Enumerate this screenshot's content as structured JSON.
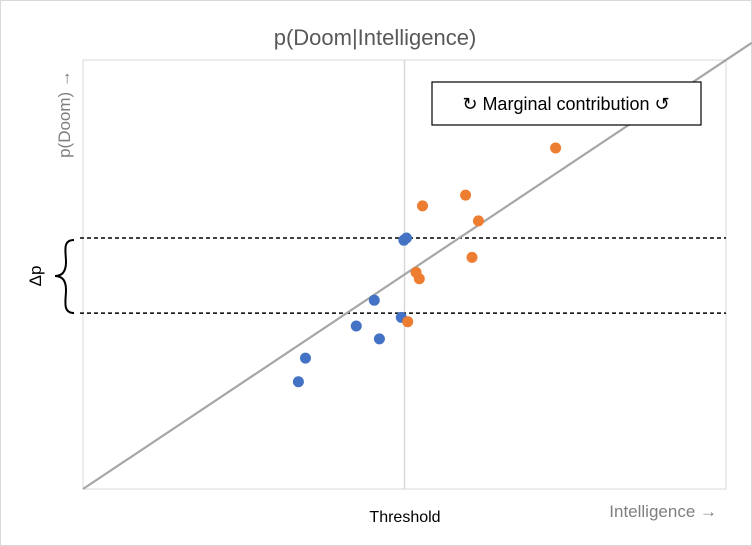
{
  "chart_data": {
    "type": "scatter",
    "title": "p(Doom|Intelligence)",
    "xlabel": "Intelligence →",
    "ylabel": "p(Doom) →",
    "xlim": [
      0,
      10
    ],
    "ylim": [
      0,
      10
    ],
    "grid": false,
    "threshold": {
      "label": "Threshold",
      "x": 5.0
    },
    "trend_line": {
      "from": [
        0,
        0
      ],
      "to": [
        10,
        10
      ],
      "color": "#a6a6a6"
    },
    "reference_lines": [
      {
        "y": 5.85,
        "style": "dashed"
      },
      {
        "y": 4.1,
        "style": "dashed"
      }
    ],
    "delta_label": "Δp",
    "annotation": "↻ Marginal contribution ↺",
    "series": [
      {
        "color": "#4472c4",
        "x": [
          3.35,
          3.46,
          4.25,
          4.53,
          4.61,
          4.95,
          4.99,
          5.03
        ],
        "y": [
          2.5,
          3.05,
          3.8,
          4.4,
          3.5,
          4.0,
          5.8,
          5.85
        ]
      },
      {
        "color": "#ed7d31",
        "x": [
          5.05,
          5.18,
          5.23,
          5.28,
          5.95,
          6.05,
          6.15,
          7.35
        ],
        "y": [
          3.9,
          5.05,
          4.9,
          6.6,
          6.85,
          5.4,
          6.25,
          7.95
        ]
      }
    ]
  }
}
